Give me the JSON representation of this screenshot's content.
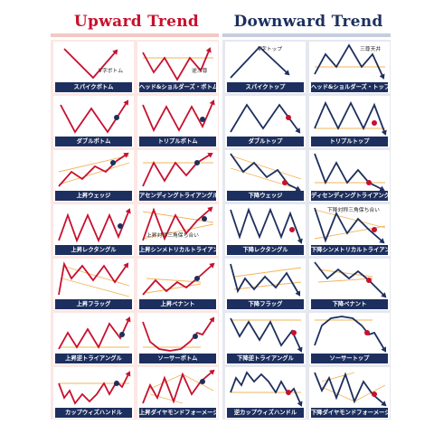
{
  "upward": {
    "title": "Upward Trend",
    "patterns": [
      {
        "label": "スパイクボトム",
        "note": "V字ボトム"
      },
      {
        "label": "ヘッド&ショルダーズ・ボトム",
        "note": "逆三尊"
      },
      {
        "label": "ダブルボトム",
        "note": ""
      },
      {
        "label": "トリプルボトム",
        "note": ""
      },
      {
        "label": "上昇ウェッジ",
        "note": ""
      },
      {
        "label": "アセンディングトライアングル",
        "note": ""
      },
      {
        "label": "上昇レクタングル",
        "note": ""
      },
      {
        "label": "上昇シンメトリカルトライアングル",
        "note": "上昇対称三角保ち合い"
      },
      {
        "label": "上昇フラッグ",
        "note": ""
      },
      {
        "label": "上昇ペナント",
        "note": ""
      },
      {
        "label": "上昇逆トライアングル",
        "note": ""
      },
      {
        "label": "ソーサーボトム",
        "note": ""
      },
      {
        "label": "カップウィズハンドル",
        "note": ""
      },
      {
        "label": "上昇ダイヤモンドフォーメーション",
        "note": ""
      }
    ]
  },
  "downward": {
    "title": "Downward Trend",
    "patterns": [
      {
        "label": "スパイクトップ",
        "note": "V字トップ"
      },
      {
        "label": "ヘッド&ショルダーズ・トップ",
        "note": "三尊天井"
      },
      {
        "label": "ダブルトップ",
        "note": ""
      },
      {
        "label": "トリプルトップ",
        "note": ""
      },
      {
        "label": "下降ウェッジ",
        "note": ""
      },
      {
        "label": "ディセンディングトライアングル",
        "note": ""
      },
      {
        "label": "下降レクタングル",
        "note": ""
      },
      {
        "label": "下降シンメトリカルトライアングル",
        "note": "下降対称三角保ち合い"
      },
      {
        "label": "下降フラッグ",
        "note": ""
      },
      {
        "label": "下降ペナント",
        "note": ""
      },
      {
        "label": "下降逆トライアングル",
        "note": ""
      },
      {
        "label": "ソーサートップ",
        "note": ""
      },
      {
        "label": "逆カップウィズハンドル",
        "note": ""
      },
      {
        "label": "下降ダイヤモンドフォーメーション",
        "note": ""
      }
    ]
  },
  "colors": {
    "up_line": "#c8102e",
    "down_line": "#1d2f5e",
    "guide": "#f2b45a",
    "up_marker": "#1d2f5e",
    "down_marker": "#c8102e"
  },
  "icons": [
    "pattern-line-icon",
    "breakout-arrow-icon",
    "breakout-marker-icon"
  ]
}
